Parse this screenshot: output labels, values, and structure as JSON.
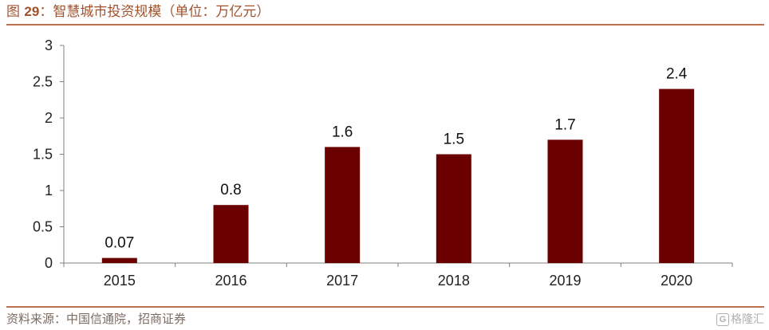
{
  "header": {
    "figure_label": "图",
    "figure_number": "29",
    "title_text": "：智慧城市投资规模（单位：万亿元）"
  },
  "chart_data": {
    "type": "bar",
    "categories": [
      "2015",
      "2016",
      "2017",
      "2018",
      "2019",
      "2020"
    ],
    "values": [
      0.07,
      0.8,
      1.6,
      1.5,
      1.7,
      2.4
    ],
    "data_labels": [
      "0.07",
      "0.8",
      "1.6",
      "1.5",
      "1.7",
      "2.4"
    ],
    "title": "智慧城市投资规模（单位：万亿元）",
    "xlabel": "",
    "ylabel": "",
    "ylim": [
      0,
      3
    ],
    "yticks": [
      "0",
      "0.5",
      "1",
      "1.5",
      "2",
      "2.5",
      "3"
    ],
    "grid": false,
    "legend": "none",
    "bar_color": "#6b0000"
  },
  "footer": {
    "source": "资料来源：中国信通院，招商证券",
    "watermark_text": "格隆汇",
    "watermark_icon": "G"
  }
}
